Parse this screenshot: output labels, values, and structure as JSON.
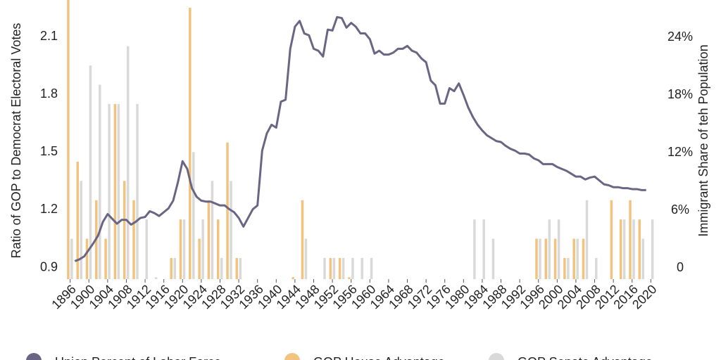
{
  "chart_data": {
    "type": "combo",
    "y_label": "Ratio of GOP to Democrat Electoral Votes",
    "y2_label": "Immigrant Share of teh Population",
    "xlim": [
      1895,
      2021.6
    ],
    "xticks": [
      1896,
      1900,
      1904,
      1908,
      1912,
      1916,
      1920,
      1924,
      1928,
      1932,
      1936,
      1940,
      1944,
      1948,
      1952,
      1956,
      1960,
      1964,
      1968,
      1972,
      1976,
      1980,
      1984,
      1988,
      1992,
      1996,
      2000,
      2004,
      2008,
      2012,
      2016,
      2020
    ],
    "ylim": [
      0.84,
      2.29
    ],
    "yticks": [
      0.9,
      1.2,
      1.5,
      1.8,
      2.1
    ],
    "y2lim": [
      -1.17,
      27.88
    ],
    "y2ticks": [
      0,
      {
        "value": 6,
        "label": "6%"
      },
      {
        "value": 12,
        "label": "12%"
      },
      {
        "value": 18,
        "label": "18%"
      },
      {
        "value": 24,
        "label": "24%"
      }
    ],
    "x": [
      1896,
      1898,
      1900,
      1902,
      1904,
      1906,
      1908,
      1910,
      1912,
      1914,
      1916,
      1918,
      1920,
      1922,
      1924,
      1926,
      1928,
      1930,
      1932,
      1934,
      1936,
      1938,
      1940,
      1942,
      1944,
      1946,
      1948,
      1950,
      1952,
      1954,
      1956,
      1958,
      1960,
      1962,
      1964,
      1966,
      1968,
      1970,
      1972,
      1974,
      1976,
      1978,
      1980,
      1982,
      1984,
      1986,
      1988,
      1990,
      1992,
      1994,
      1996,
      1998,
      2000,
      2002,
      2004,
      2006,
      2008,
      2010,
      2012,
      2014,
      2016,
      2018,
      2020
    ],
    "series": [
      {
        "name": "Union Percent of Labor Force",
        "type": "line",
        "color": "#6b6584",
        "axis": "y2",
        "x": [
          1897,
          1898,
          1899,
          1900,
          1901,
          1902,
          1903,
          1904,
          1905,
          1906,
          1907,
          1908,
          1909,
          1910,
          1911,
          1912,
          1913,
          1914,
          1915,
          1916,
          1917,
          1918,
          1919,
          1920,
          1921,
          1922,
          1923,
          1924,
          1925,
          1926,
          1927,
          1928,
          1929,
          1930,
          1931,
          1932,
          1933,
          1934,
          1935,
          1936,
          1937,
          1938,
          1939,
          1940,
          1941,
          1942,
          1943,
          1944,
          1945,
          1946,
          1947,
          1948,
          1949,
          1950,
          1951,
          1952,
          1953,
          1954,
          1955,
          1956,
          1957,
          1958,
          1959,
          1960,
          1961,
          1962,
          1963,
          1964,
          1965,
          1966,
          1967,
          1968,
          1969,
          1970,
          1971,
          1972,
          1973,
          1974,
          1975,
          1976,
          1977,
          1978,
          1979,
          1980,
          1981,
          1982,
          1983,
          1984,
          1985,
          1986,
          1987,
          1988,
          1989,
          1990,
          1991,
          1992,
          1993,
          1994,
          1995,
          1996,
          1997,
          1998,
          1999,
          2000,
          2001,
          2002,
          2003,
          2004,
          2005,
          2006,
          2007,
          2008,
          2009,
          2010,
          2011,
          2012,
          2013,
          2014,
          2015,
          2016,
          2017,
          2018,
          2019
        ],
        "values": [
          0.7,
          0.9,
          1.2,
          1.9,
          2.6,
          3.4,
          4.8,
          5.6,
          5.1,
          4.6,
          5.0,
          5.0,
          4.5,
          4.8,
          5.2,
          5.3,
          5.9,
          5.7,
          5.4,
          5.8,
          6.2,
          7.0,
          8.9,
          11.1,
          10.3,
          8.3,
          7.4,
          7.0,
          6.9,
          6.9,
          6.7,
          6.5,
          6.5,
          6.1,
          5.8,
          5.2,
          4.3,
          5.2,
          6.1,
          6.5,
          12.2,
          14.0,
          14.9,
          14.6,
          17.3,
          17.5,
          22.8,
          25.1,
          25.7,
          24.4,
          24.2,
          22.8,
          22.6,
          22.0,
          24.8,
          24.7,
          26.1,
          26.0,
          25.0,
          25.5,
          25.1,
          24.4,
          24.4,
          23.8,
          22.3,
          22.6,
          22.2,
          22.2,
          22.4,
          22.8,
          22.8,
          23.1,
          22.6,
          22.4,
          21.8,
          21.4,
          19.5,
          19.0,
          17.1,
          17.1,
          18.7,
          18.4,
          19.2,
          18.0,
          16.7,
          15.7,
          14.9,
          14.3,
          13.8,
          13.5,
          13.2,
          13.1,
          12.7,
          12.4,
          12.2,
          11.9,
          11.9,
          11.8,
          11.4,
          11.2,
          10.8,
          10.8,
          10.8,
          10.5,
          10.3,
          10.1,
          9.8,
          9.5,
          9.5,
          9.2,
          9.4,
          9.5,
          9.1,
          8.7,
          8.6,
          8.4,
          8.4,
          8.3,
          8.3,
          8.2,
          8.2,
          8.1,
          8.1
        ]
      },
      {
        "name": "GOP House Advantage",
        "type": "bar",
        "color": "#f2c27f",
        "values": [
          2.29,
          1.45,
          1.05,
          1.25,
          1.05,
          1.75,
          1.35,
          1.25,
          null,
          null,
          null,
          0.95,
          1.15,
          2.25,
          1.05,
          1.25,
          1.15,
          1.55,
          0.95,
          null,
          null,
          null,
          null,
          null,
          0.85,
          1.25,
          null,
          null,
          0.95,
          0.95,
          0.85,
          null,
          null,
          null,
          null,
          null,
          null,
          null,
          null,
          null,
          null,
          null,
          null,
          null,
          null,
          null,
          null,
          null,
          null,
          null,
          1.05,
          1.05,
          1.05,
          0.95,
          1.05,
          1.05,
          null,
          null,
          1.25,
          1.15,
          1.25,
          1.15,
          null
        ]
      },
      {
        "name": "GOP Senate Advantage",
        "type": "bar",
        "color": "#d9d9d9",
        "values": [
          1.05,
          1.35,
          1.95,
          1.85,
          1.75,
          1.75,
          2.05,
          1.75,
          1.15,
          0.85,
          null,
          0.95,
          1.15,
          1.5,
          1.15,
          1.35,
          0.95,
          1.35,
          0.95,
          null,
          null,
          null,
          null,
          null,
          null,
          1.05,
          null,
          0.95,
          0.95,
          0.95,
          0.95,
          0.95,
          0.95,
          null,
          null,
          null,
          null,
          null,
          null,
          null,
          null,
          null,
          null,
          1.15,
          1.15,
          1.05,
          null,
          null,
          null,
          null,
          1.05,
          1.15,
          1.15,
          0.95,
          1.05,
          1.25,
          0.95,
          null,
          null,
          1.15,
          1.15,
          1.05,
          1.15
        ]
      }
    ]
  }
}
